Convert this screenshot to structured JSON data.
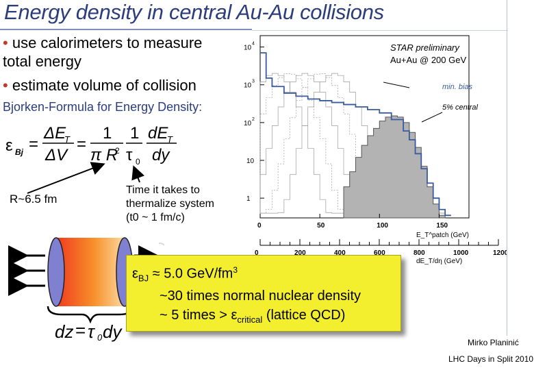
{
  "slide": {
    "title": "Energy density in central Au-Au collisions",
    "bullets": [
      "use calorimeters to measure total energy",
      "estimate volume of  collision"
    ],
    "bullet_line1": "use calorimeters to measure",
    "bullet_line2": "total energy",
    "bullet_line3": "estimate volume of  collision",
    "bjorken": "Bjorken-Formula for Energy Density:",
    "r_label": "R~6.5 fm",
    "time_lines": [
      "Time it takes to",
      "thermalize system",
      "(t0 ~  1 fm/c)"
    ],
    "time_line1": "Time it takes to",
    "time_line2": "thermalize system",
    "time_line3": "(t0 ~  1 fm/c)",
    "formula": {
      "lhs": "ε",
      "lhs_sub": "Bj",
      "eq": "=",
      "frac1_num": "ΔE",
      "frac1_num_sub": "T",
      "frac1_den": "ΔV",
      "frac2_num": "1",
      "frac2_den": "π R",
      "frac2_den_sup": "2",
      "frac3_num": "1",
      "frac3_den": "τ",
      "frac3_den_sub": "0",
      "frac4_num": "dE",
      "frac4_num_sub": "T",
      "frac4_den": "dy"
    },
    "dz": {
      "lhs": "dz",
      "eq": "=",
      "tau": "τ",
      "sub": "0",
      "dy": "dy"
    },
    "yellow_box": {
      "line1_sym": "ε",
      "line1_sub": "BJ",
      "line1": "≈ 5.0 GeV/fm",
      "line1_sup": "3",
      "line2": "~30 times normal nuclear density",
      "line3_pre": "~ 5 times > ε",
      "line3_sub": "critical",
      "line3_post": "  (lattice QCD)"
    },
    "credit_author": "Mirko Planinić",
    "credit_event": "LHC Days in Split 2010"
  },
  "chart_data": {
    "type": "bar",
    "title": "STAR preliminary",
    "subtitle": "Au+Au @ 200 GeV",
    "annotations": [
      "min. bias",
      "5% central"
    ],
    "y_scale": "log",
    "ylim": [
      0.3,
      20000
    ],
    "y_ticks": [
      "1",
      "10",
      "10^2",
      "10^3",
      "10^4"
    ],
    "x_axis_1": {
      "label": "E_T^patch (GeV)",
      "ticks": [
        "0",
        "50",
        "100",
        "150"
      ],
      "range": [
        0,
        175
      ]
    },
    "x_axis_2": {
      "label": "dE_T/dη (GeV)",
      "ticks": [
        "0",
        "200",
        "400",
        "600",
        "800",
        "1000",
        "1200"
      ],
      "range": [
        0,
        1200
      ]
    },
    "series": [
      {
        "name": "min. bias",
        "x": [
          0,
          5,
          10,
          20,
          30,
          40,
          50,
          60,
          70,
          80,
          90,
          100,
          110,
          120,
          125,
          130,
          135,
          140,
          145,
          150,
          155
        ],
        "values": [
          7000,
          1500,
          900,
          600,
          500,
          420,
          380,
          340,
          300,
          260,
          220,
          180,
          120,
          60,
          35,
          15,
          6,
          2.5,
          1,
          0.5,
          0.35
        ]
      },
      {
        "name": "5% central",
        "x": [
          70,
          75,
          80,
          85,
          90,
          95,
          100,
          105,
          110,
          115,
          120,
          125,
          130,
          135,
          140,
          145,
          150
        ],
        "values": [
          2,
          5,
          12,
          25,
          45,
          70,
          110,
          140,
          150,
          140,
          100,
          55,
          22,
          7,
          2,
          0.7,
          0.35
        ]
      }
    ],
    "colors": {
      "min_bias": "#3a5a9c",
      "central_fill": "#b3b3b3",
      "yellow": "#f3ee2e",
      "title_blue": "#2b3d7c"
    }
  }
}
